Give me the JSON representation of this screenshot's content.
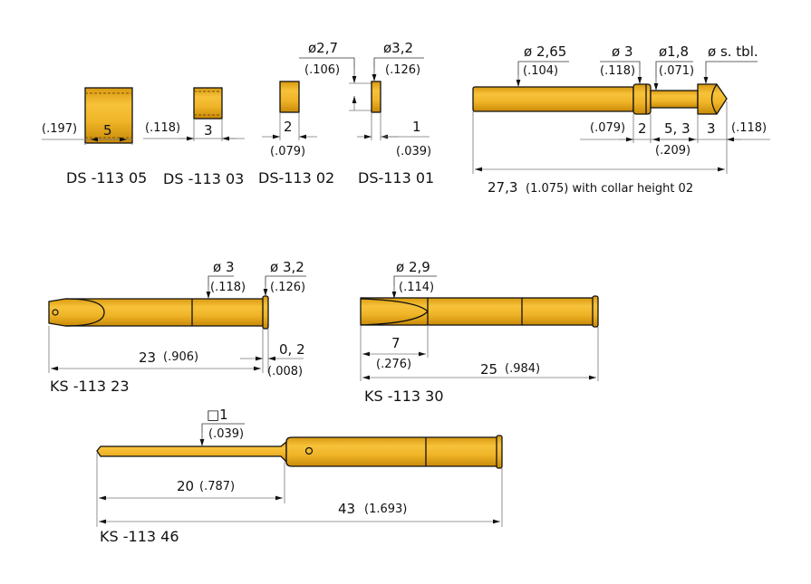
{
  "colors": {
    "gold_light": "#f7c23a",
    "gold_mid": "#e9a80f",
    "gold_dark": "#c98a08",
    "outline": "#111111"
  },
  "ds05": {
    "label": "DS -113  05",
    "len": "5",
    "len_in": "(.197)"
  },
  "ds03": {
    "label": "DS -113  03",
    "len": "3",
    "len_in": "(.118)"
  },
  "ds02": {
    "label": "DS-113 02",
    "len": "2",
    "len_in": "(.079)",
    "dia": "ø2,7",
    "dia_in": "(.106)"
  },
  "ds01": {
    "label": "DS-113 01",
    "len": "1",
    "len_in": "(.039)",
    "dia": "ø3,2",
    "dia_in": "(.126)"
  },
  "probe": {
    "d1": "ø 2,65",
    "d1_in": "(.104)",
    "d2": "ø 3",
    "d2_in": "(.118)",
    "d3": "ø1,8",
    "d3_in": "(.071)",
    "d4": "ø s. tbl.",
    "l1_in": "(.079)",
    "l1": "2",
    "l2": "5, 3",
    "l2_in": "(.209)",
    "l3": "3",
    "l3_in": "(.118)",
    "total": "27,3",
    "total_in": "(1.075) with collar height 02"
  },
  "ks23": {
    "label": "KS -113  23",
    "d1": "ø 3",
    "d1_in": "(.118)",
    "d2": "ø 3,2",
    "d2_in": "(.126)",
    "len": "23",
    "len_in": "(.906)",
    "collar": "0, 2",
    "collar_in": "(.008)"
  },
  "ks30": {
    "label": "KS -113  30",
    "d1": "ø 2,9",
    "d1_in": "(.114)",
    "l1": "7",
    "l1_in": "(.276)",
    "len": "25",
    "len_in": "(.984)"
  },
  "ks46": {
    "label": "KS -113  46",
    "sq": "□1",
    "sq_in": "(.039)",
    "l1": "20",
    "l1_in": "(.787)",
    "len": "43",
    "len_in": "(1.693)"
  }
}
